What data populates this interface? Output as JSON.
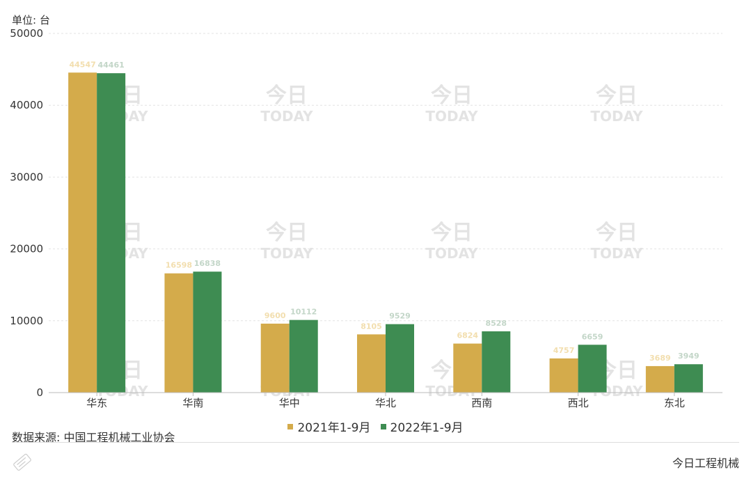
{
  "unit_label": "单位: 台",
  "source_label": "数据来源: 中国工程机械工业协会",
  "brand_label": "今日工程机械",
  "watermark": {
    "cn": "今日",
    "en": "TODAY"
  },
  "colors": {
    "series1": "#d4ab4b",
    "series2": "#3e8c52",
    "grid": "#e3e3e3",
    "axis": "#bbbbbb"
  },
  "chart_data": {
    "type": "bar",
    "categories": [
      "华东",
      "华南",
      "华中",
      "华北",
      "西南",
      "西北",
      "东北"
    ],
    "series": [
      {
        "name": "2021年1-9月",
        "values": [
          44547,
          16598,
          9600,
          8105,
          6824,
          4757,
          3689
        ]
      },
      {
        "name": "2022年1-9月",
        "values": [
          44461,
          16838,
          10112,
          9529,
          8528,
          6659,
          3949
        ]
      }
    ],
    "y_ticks": [
      0,
      10000,
      20000,
      30000,
      40000,
      50000
    ],
    "ylim": [
      0,
      50000
    ],
    "xlabel": "",
    "ylabel": "",
    "grid": true,
    "legend_position": "bottom-center"
  }
}
